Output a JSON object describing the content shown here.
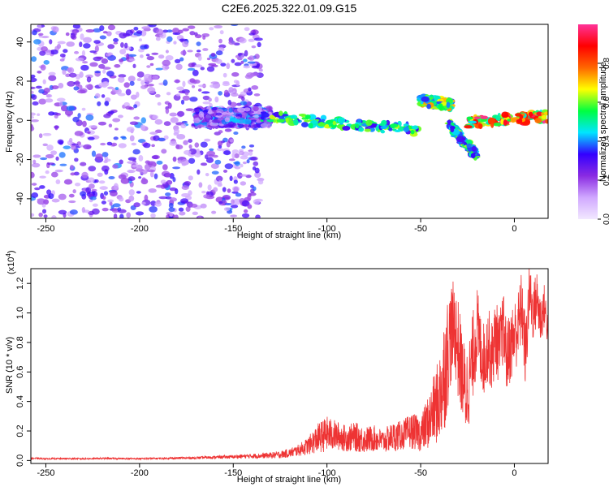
{
  "title": "C2E6.2025.322.01.09.G15",
  "chart_data": [
    {
      "type": "heatmap",
      "description_free": true,
      "xlabel": "Height of straight line (km)",
      "ylabel": "Frequency (Hz)",
      "xlim": [
        -258,
        18
      ],
      "ylim": [
        -50,
        49
      ],
      "xticks": [
        -250,
        -200,
        -150,
        -100,
        -50,
        0
      ],
      "xtick_labels": [
        "-250",
        "-200",
        "-150",
        "-100",
        "-50",
        "0"
      ],
      "yticks": [
        -40,
        -20,
        0,
        20,
        40
      ],
      "ytick_labels": [
        "-40",
        "-20",
        "0",
        "20",
        "40"
      ],
      "colorbar": {
        "label": "Normalized spectral amplitude",
        "range": [
          0,
          1
        ],
        "ticks": [
          0.0,
          0.2,
          0.4,
          0.6,
          0.8
        ],
        "tick_labels": [
          "0.0",
          "0.2",
          "0.4",
          "0.6",
          "0.8"
        ],
        "colormap": [
          "#f2e8ff",
          "#d0a8ff",
          "#8a2be2",
          "#3300ff",
          "#00e5ff",
          "#00ff40",
          "#ffff00",
          "#ff6600",
          "#ff0000",
          "#ff3399"
        ]
      },
      "features": [
        {
          "x_range": [
            -258,
            -135
          ],
          "y_range": [
            -50,
            49
          ],
          "level": 0.3
        },
        {
          "x_range": [
            -170,
            -130
          ],
          "y_range": [
            -3,
            6
          ],
          "level": 0.35
        },
        {
          "x_range": [
            -135,
            -50
          ],
          "y_center": [
            2,
            -5
          ],
          "level": 0.5
        },
        {
          "x_range": [
            -50,
            -33
          ],
          "y_center": [
            10,
            8
          ],
          "level": 0.6
        },
        {
          "x_range": [
            -35,
            -20
          ],
          "y_center": [
            -2,
            -18
          ],
          "level": 0.5
        },
        {
          "x_range": [
            -25,
            18
          ],
          "y_center": [
            -1,
            2
          ],
          "level": 0.85
        }
      ]
    },
    {
      "type": "line",
      "xlabel": "Height of straight line (km)",
      "ylabel": "SNR (10 * v/v)",
      "scale_label_base": "(x10",
      "scale_label_exp": "4",
      "scale_label_end": ")",
      "xlim": [
        -258,
        18
      ],
      "ylim": [
        -0.02,
        1.3
      ],
      "xticks": [
        -250,
        -200,
        -150,
        -100,
        -50,
        0
      ],
      "xtick_labels": [
        "-250",
        "-200",
        "-150",
        "-100",
        "-50",
        "0"
      ],
      "yticks": [
        0.0,
        0.2,
        0.4,
        0.6,
        0.8,
        1.0,
        1.2
      ],
      "ytick_labels": [
        "0.0",
        "0.2",
        "0.4",
        "0.6",
        "0.8",
        "1.0",
        "1.2"
      ],
      "color": "#ee3333",
      "series": [
        {
          "x": [
            -258,
            -250,
            -240,
            -230,
            -220,
            -210,
            -200,
            -190,
            -180,
            -170,
            -160,
            -150,
            -145,
            -140,
            -135,
            -130,
            -125,
            -120,
            -115,
            -110,
            -105,
            -100,
            -95,
            -90,
            -85,
            -80,
            -75,
            -70,
            -65,
            -60,
            -55,
            -50,
            -45,
            -40,
            -38,
            -36,
            -34,
            -32,
            -30,
            -28,
            -26,
            -24,
            -22,
            -20,
            -18,
            -16,
            -14,
            -12,
            -10,
            -8,
            -6,
            -4,
            -2,
            0,
            2,
            4,
            6,
            8,
            10,
            12,
            14,
            16,
            18
          ],
          "y": [
            0.015,
            0.012,
            0.013,
            0.012,
            0.014,
            0.013,
            0.012,
            0.014,
            0.016,
            0.018,
            0.022,
            0.025,
            0.028,
            0.03,
            0.032,
            0.035,
            0.04,
            0.05,
            0.07,
            0.1,
            0.15,
            0.18,
            0.17,
            0.15,
            0.16,
            0.14,
            0.15,
            0.13,
            0.16,
            0.17,
            0.2,
            0.18,
            0.28,
            0.42,
            0.55,
            0.7,
            0.85,
            0.92,
            0.75,
            0.6,
            0.45,
            0.55,
            0.72,
            0.9,
            0.75,
            0.68,
            0.8,
            0.7,
            0.85,
            0.75,
            0.9,
            0.7,
            0.78,
            0.85,
            0.9,
            1.05,
            0.7,
            1.15,
            1.0,
            1.1,
            0.95,
            1.05,
            0.88
          ],
          "amplitude": [
            0.006,
            0.005,
            0.006,
            0.005,
            0.006,
            0.005,
            0.006,
            0.006,
            0.007,
            0.008,
            0.01,
            0.012,
            0.014,
            0.016,
            0.018,
            0.02,
            0.025,
            0.03,
            0.04,
            0.06,
            0.1,
            0.12,
            0.1,
            0.09,
            0.1,
            0.09,
            0.09,
            0.08,
            0.1,
            0.1,
            0.12,
            0.12,
            0.2,
            0.3,
            0.4,
            0.4,
            0.35,
            0.3,
            0.35,
            0.3,
            0.3,
            0.3,
            0.3,
            0.3,
            0.25,
            0.25,
            0.25,
            0.25,
            0.25,
            0.25,
            0.25,
            0.25,
            0.25,
            0.25,
            0.25,
            0.25,
            0.25,
            0.2,
            0.2,
            0.2,
            0.18,
            0.15,
            0.12
          ]
        }
      ]
    }
  ]
}
